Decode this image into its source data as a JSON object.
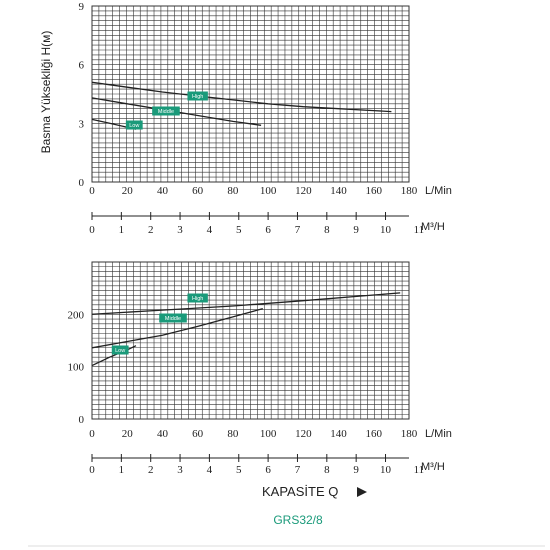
{
  "chart_data": [
    {
      "type": "line",
      "ylabel": "Basma Yüksekliği H(м)",
      "y_ticks": [
        0,
        3,
        6,
        9
      ],
      "ylim": [
        0,
        9
      ],
      "xlim": [
        0,
        180
      ],
      "x_ticks_lmin": [
        0,
        20,
        40,
        60,
        80,
        100,
        120,
        140,
        160,
        180
      ],
      "x_unit_lmin": "L/Min",
      "x_ticks_m3h": [
        0,
        1,
        2,
        3,
        4,
        5,
        6,
        7,
        8,
        9,
        10,
        11
      ],
      "x_unit_m3h": "M³/H",
      "grid": true,
      "series": [
        {
          "name": "High",
          "x": [
            0,
            20,
            40,
            60,
            80,
            100,
            120,
            140,
            160,
            170
          ],
          "y": [
            5.1,
            4.85,
            4.6,
            4.4,
            4.2,
            4.0,
            3.85,
            3.75,
            3.65,
            3.6
          ]
        },
        {
          "name": "Middle",
          "x": [
            0,
            20,
            40,
            60,
            80,
            96
          ],
          "y": [
            4.3,
            4.0,
            3.7,
            3.4,
            3.1,
            2.9
          ]
        },
        {
          "name": "Low",
          "x": [
            0,
            10,
            20,
            25
          ],
          "y": [
            3.2,
            3.0,
            2.8,
            2.7
          ]
        }
      ]
    },
    {
      "type": "line",
      "y_ticks": [
        0,
        100,
        200
      ],
      "ylim": [
        0,
        300
      ],
      "xlim": [
        0,
        180
      ],
      "x_ticks_lmin": [
        0,
        20,
        40,
        60,
        80,
        100,
        120,
        140,
        160,
        180
      ],
      "x_unit_lmin": "L/Min",
      "x_ticks_m3h": [
        0,
        1,
        2,
        3,
        4,
        5,
        6,
        7,
        8,
        9,
        10,
        11
      ],
      "x_unit_m3h": "M³/H",
      "grid": true,
      "series": [
        {
          "name": "High",
          "x": [
            0,
            40,
            80,
            120,
            160,
            175
          ],
          "y": [
            200,
            208,
            216,
            226,
            237,
            241
          ]
        },
        {
          "name": "Middle",
          "x": [
            0,
            20,
            40,
            60,
            80,
            97
          ],
          "y": [
            136,
            148,
            160,
            177,
            195,
            211
          ]
        },
        {
          "name": "Low",
          "x": [
            0,
            10,
            20,
            25
          ],
          "y": [
            102,
            118,
            132,
            140
          ]
        }
      ]
    }
  ],
  "footer": {
    "x_title": "KAPASİTE Q",
    "arrow_icon": "right-triangle-icon",
    "model": "GRS32/8"
  },
  "colors": {
    "grid": "#333333",
    "curve": "#222222",
    "tag_fill": "#1a9a7a",
    "model_text": "#1a9a7a"
  }
}
